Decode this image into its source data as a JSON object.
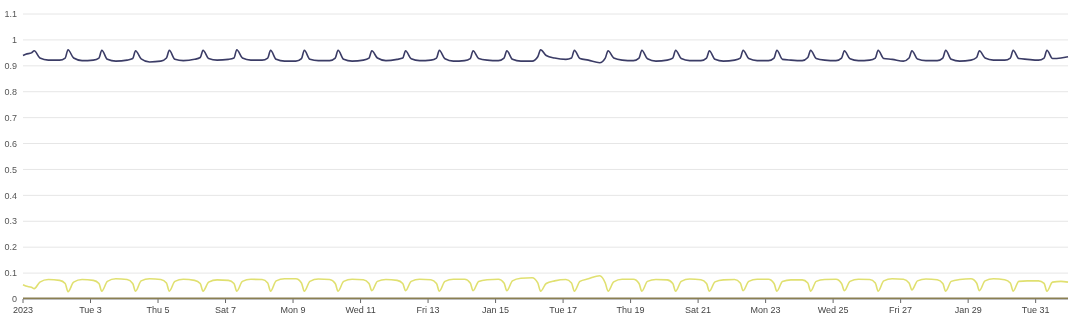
{
  "chart_data": {
    "type": "line",
    "xlim": [
      "2023-01-01T00:00",
      "2023-01-31T23:00"
    ],
    "ylim": [
      0,
      1.1
    ],
    "yticks": [
      0,
      0.1,
      0.2,
      0.3,
      0.4,
      0.5,
      0.6,
      0.7,
      0.8,
      0.9,
      1,
      1.1
    ],
    "xticks": [
      {
        "value": "2023-01-01",
        "label": "2023"
      },
      {
        "value": "2023-01-03",
        "label": "Tue 3"
      },
      {
        "value": "2023-01-05",
        "label": "Thu 5"
      },
      {
        "value": "2023-01-07",
        "label": "Sat 7"
      },
      {
        "value": "2023-01-09",
        "label": "Mon 9"
      },
      {
        "value": "2023-01-11",
        "label": "Wed 11"
      },
      {
        "value": "2023-01-13",
        "label": "Fri 13"
      },
      {
        "value": "2023-01-15",
        "label": "Jan 15"
      },
      {
        "value": "2023-01-17",
        "label": "Tue 17"
      },
      {
        "value": "2023-01-19",
        "label": "Thu 19"
      },
      {
        "value": "2023-01-21",
        "label": "Sat 21"
      },
      {
        "value": "2023-01-23",
        "label": "Mon 23"
      },
      {
        "value": "2023-01-25",
        "label": "Wed 25"
      },
      {
        "value": "2023-01-27",
        "label": "Fri 27"
      },
      {
        "value": "2023-01-29",
        "label": "Jan 29"
      },
      {
        "value": "2023-01-31",
        "label": "Tue 31"
      }
    ],
    "grid": "y",
    "marker": "none",
    "line_style": "solid",
    "x": [
      "2023-01-01T00:00",
      "2023-01-01T02:00",
      "2023-01-01T06:00",
      "2023-01-01T08:00",
      "2023-01-01T12:00",
      "2023-01-01T18:00",
      "2023-01-02T02:00",
      "2023-01-02T06:00",
      "2023-01-02T08:00",
      "2023-01-02T12:00",
      "2023-01-02T18:00",
      "2023-01-03T02:00",
      "2023-01-03T06:00",
      "2023-01-03T08:00",
      "2023-01-03T12:00",
      "2023-01-03T18:00",
      "2023-01-04T02:00",
      "2023-01-04T06:00",
      "2023-01-04T08:00",
      "2023-01-04T12:00",
      "2023-01-04T18:00",
      "2023-01-05T02:00",
      "2023-01-05T06:00",
      "2023-01-05T08:00",
      "2023-01-05T12:00",
      "2023-01-05T18:00",
      "2023-01-06T02:00",
      "2023-01-06T06:00",
      "2023-01-06T08:00",
      "2023-01-06T12:00",
      "2023-01-06T18:00",
      "2023-01-07T02:00",
      "2023-01-07T06:00",
      "2023-01-07T08:00",
      "2023-01-07T12:00",
      "2023-01-07T18:00",
      "2023-01-08T02:00",
      "2023-01-08T06:00",
      "2023-01-08T08:00",
      "2023-01-08T12:00",
      "2023-01-08T18:00",
      "2023-01-09T02:00",
      "2023-01-09T06:00",
      "2023-01-09T08:00",
      "2023-01-09T12:00",
      "2023-01-09T18:00",
      "2023-01-10T02:00",
      "2023-01-10T06:00",
      "2023-01-10T08:00",
      "2023-01-10T12:00",
      "2023-01-10T18:00",
      "2023-01-11T02:00",
      "2023-01-11T06:00",
      "2023-01-11T08:00",
      "2023-01-11T12:00",
      "2023-01-11T18:00",
      "2023-01-12T02:00",
      "2023-01-12T06:00",
      "2023-01-12T08:00",
      "2023-01-12T12:00",
      "2023-01-12T18:00",
      "2023-01-13T02:00",
      "2023-01-13T06:00",
      "2023-01-13T08:00",
      "2023-01-13T12:00",
      "2023-01-13T18:00",
      "2023-01-14T02:00",
      "2023-01-14T06:00",
      "2023-01-14T08:00",
      "2023-01-14T12:00",
      "2023-01-14T18:00",
      "2023-01-15T02:00",
      "2023-01-15T06:00",
      "2023-01-15T08:00",
      "2023-01-15T12:00",
      "2023-01-15T18:00",
      "2023-01-16T02:00",
      "2023-01-16T06:00",
      "2023-01-16T08:00",
      "2023-01-16T12:00",
      "2023-01-16T18:00",
      "2023-01-17T02:00",
      "2023-01-17T06:00",
      "2023-01-17T08:00",
      "2023-01-17T12:00",
      "2023-01-17T18:00",
      "2023-01-18T02:00",
      "2023-01-18T06:00",
      "2023-01-18T08:00",
      "2023-01-18T12:00",
      "2023-01-18T18:00",
      "2023-01-19T02:00",
      "2023-01-19T06:00",
      "2023-01-19T08:00",
      "2023-01-19T12:00",
      "2023-01-19T18:00",
      "2023-01-20T02:00",
      "2023-01-20T06:00",
      "2023-01-20T08:00",
      "2023-01-20T12:00",
      "2023-01-20T18:00",
      "2023-01-21T02:00",
      "2023-01-21T06:00",
      "2023-01-21T08:00",
      "2023-01-21T12:00",
      "2023-01-21T18:00",
      "2023-01-22T02:00",
      "2023-01-22T06:00",
      "2023-01-22T08:00",
      "2023-01-22T12:00",
      "2023-01-22T18:00",
      "2023-01-23T02:00",
      "2023-01-23T06:00",
      "2023-01-23T08:00",
      "2023-01-23T12:00",
      "2023-01-23T18:00",
      "2023-01-24T02:00",
      "2023-01-24T06:00",
      "2023-01-24T08:00",
      "2023-01-24T12:00",
      "2023-01-24T18:00",
      "2023-01-25T02:00",
      "2023-01-25T06:00",
      "2023-01-25T08:00",
      "2023-01-25T12:00",
      "2023-01-25T18:00",
      "2023-01-26T02:00",
      "2023-01-26T06:00",
      "2023-01-26T08:00",
      "2023-01-26T12:00",
      "2023-01-26T18:00",
      "2023-01-27T02:00",
      "2023-01-27T06:00",
      "2023-01-27T08:00",
      "2023-01-27T12:00",
      "2023-01-27T18:00",
      "2023-01-28T02:00",
      "2023-01-28T06:00",
      "2023-01-28T08:00",
      "2023-01-28T12:00",
      "2023-01-28T18:00",
      "2023-01-29T02:00",
      "2023-01-29T06:00",
      "2023-01-29T08:00",
      "2023-01-29T12:00",
      "2023-01-29T18:00",
      "2023-01-30T02:00",
      "2023-01-30T06:00",
      "2023-01-30T08:00",
      "2023-01-30T12:00",
      "2023-01-30T18:00",
      "2023-01-31T02:00",
      "2023-01-31T06:00",
      "2023-01-31T08:00",
      "2023-01-31T12:00",
      "2023-01-31T18:00",
      "2023-01-31T23:00"
    ],
    "series": [
      {
        "color": "#3b3c66",
        "values": [
          0.94,
          0.945,
          0.95,
          0.958,
          0.93,
          0.922,
          0.922,
          0.93,
          0.962,
          0.93,
          0.92,
          0.922,
          0.93,
          0.96,
          0.925,
          0.918,
          0.922,
          0.928,
          0.958,
          0.927,
          0.915,
          0.918,
          0.93,
          0.96,
          0.925,
          0.92,
          0.925,
          0.932,
          0.96,
          0.928,
          0.922,
          0.925,
          0.93,
          0.962,
          0.93,
          0.922,
          0.922,
          0.93,
          0.96,
          0.925,
          0.918,
          0.918,
          0.928,
          0.96,
          0.925,
          0.92,
          0.92,
          0.93,
          0.96,
          0.925,
          0.918,
          0.922,
          0.93,
          0.958,
          0.93,
          0.92,
          0.925,
          0.93,
          0.958,
          0.927,
          0.92,
          0.922,
          0.93,
          0.96,
          0.927,
          0.918,
          0.92,
          0.928,
          0.958,
          0.928,
          0.922,
          0.92,
          0.93,
          0.958,
          0.925,
          0.918,
          0.918,
          0.935,
          0.962,
          0.94,
          0.93,
          0.925,
          0.93,
          0.96,
          0.928,
          0.922,
          0.912,
          0.93,
          0.958,
          0.93,
          0.922,
          0.92,
          0.93,
          0.96,
          0.927,
          0.918,
          0.922,
          0.93,
          0.96,
          0.928,
          0.92,
          0.92,
          0.93,
          0.958,
          0.925,
          0.918,
          0.922,
          0.93,
          0.96,
          0.928,
          0.92,
          0.92,
          0.93,
          0.96,
          0.925,
          0.922,
          0.92,
          0.932,
          0.96,
          0.928,
          0.922,
          0.92,
          0.93,
          0.958,
          0.927,
          0.92,
          0.922,
          0.93,
          0.96,
          0.928,
          0.925,
          0.918,
          0.93,
          0.958,
          0.926,
          0.92,
          0.92,
          0.93,
          0.96,
          0.925,
          0.918,
          0.922,
          0.932,
          0.958,
          0.93,
          0.922,
          0.922,
          0.93,
          0.96,
          0.928,
          0.925,
          0.922,
          0.93,
          0.96,
          0.928,
          0.93,
          0.935
        ]
      },
      {
        "color": "#e0e070",
        "values": [
          0.055,
          0.05,
          0.045,
          0.04,
          0.065,
          0.075,
          0.072,
          0.06,
          0.028,
          0.065,
          0.075,
          0.072,
          0.06,
          0.03,
          0.068,
          0.078,
          0.075,
          0.06,
          0.03,
          0.07,
          0.078,
          0.075,
          0.062,
          0.03,
          0.068,
          0.076,
          0.072,
          0.06,
          0.03,
          0.065,
          0.074,
          0.072,
          0.06,
          0.03,
          0.068,
          0.076,
          0.075,
          0.062,
          0.03,
          0.07,
          0.078,
          0.078,
          0.062,
          0.03,
          0.068,
          0.077,
          0.075,
          0.06,
          0.03,
          0.068,
          0.076,
          0.074,
          0.06,
          0.032,
          0.068,
          0.075,
          0.072,
          0.06,
          0.032,
          0.068,
          0.076,
          0.074,
          0.06,
          0.03,
          0.068,
          0.076,
          0.076,
          0.062,
          0.032,
          0.068,
          0.074,
          0.076,
          0.062,
          0.032,
          0.07,
          0.08,
          0.082,
          0.062,
          0.03,
          0.06,
          0.07,
          0.075,
          0.062,
          0.03,
          0.068,
          0.078,
          0.09,
          0.062,
          0.03,
          0.066,
          0.076,
          0.076,
          0.06,
          0.03,
          0.068,
          0.075,
          0.074,
          0.06,
          0.03,
          0.068,
          0.077,
          0.074,
          0.06,
          0.03,
          0.066,
          0.074,
          0.075,
          0.062,
          0.032,
          0.068,
          0.076,
          0.076,
          0.06,
          0.03,
          0.068,
          0.074,
          0.074,
          0.062,
          0.03,
          0.068,
          0.075,
          0.076,
          0.06,
          0.032,
          0.068,
          0.076,
          0.075,
          0.062,
          0.03,
          0.07,
          0.078,
          0.076,
          0.062,
          0.035,
          0.07,
          0.077,
          0.074,
          0.06,
          0.03,
          0.068,
          0.075,
          0.078,
          0.062,
          0.032,
          0.07,
          0.078,
          0.074,
          0.062,
          0.03,
          0.068,
          0.07,
          0.07,
          0.06,
          0.03,
          0.065,
          0.068,
          0.065
        ]
      },
      {
        "color": "#8a7f52",
        "x": [
          "2023-01-01T00:00",
          "2023-01-31T23:00"
        ],
        "values": [
          0.003,
          0.003
        ]
      }
    ]
  }
}
